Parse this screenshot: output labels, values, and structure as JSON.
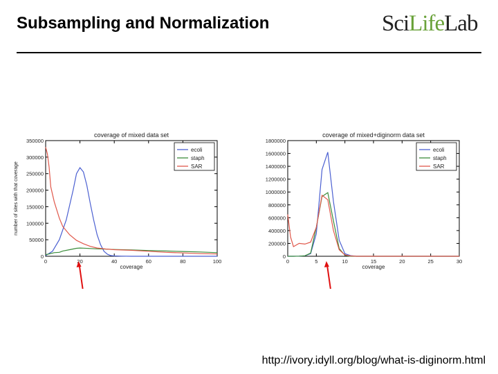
{
  "slide": {
    "title": "Subsampling and Normalization",
    "logo": {
      "part1": "Sci",
      "part2": "Life",
      "part3": "Lab"
    },
    "footer_link": "http://ivory.idyll.org/blog/what-is-diginorm.html"
  },
  "colors": {
    "ecoli": "#4a5fd1",
    "staph": "#3a8c3a",
    "sar": "#e0574a",
    "arrow": "#e01010"
  },
  "chart_data": [
    {
      "type": "line",
      "title": "coverage of mixed data set",
      "xlabel": "coverage",
      "ylabel": "number of sites with that coverage",
      "xlim": [
        0,
        100
      ],
      "ylim": [
        0,
        350000
      ],
      "xticks": [
        0,
        20,
        40,
        60,
        80,
        100
      ],
      "yticks": [
        0,
        50000,
        100000,
        150000,
        200000,
        250000,
        300000,
        350000
      ],
      "legend": "top-right",
      "series": [
        {
          "name": "ecoli",
          "color": "#4a5fd1",
          "x": [
            0,
            4,
            8,
            12,
            16,
            18,
            20,
            22,
            24,
            26,
            28,
            30,
            32,
            34,
            36,
            38,
            40,
            44,
            50,
            60,
            70,
            80,
            90,
            100
          ],
          "y": [
            2000,
            15000,
            50000,
            110000,
            200000,
            250000,
            268000,
            255000,
            215000,
            160000,
            110000,
            65000,
            35000,
            15000,
            6000,
            2000,
            1000,
            500,
            0,
            0,
            0,
            0,
            0,
            0
          ]
        },
        {
          "name": "staph",
          "color": "#3a8c3a",
          "x": [
            0,
            2,
            5,
            8,
            10,
            14,
            18,
            20,
            22,
            26,
            30,
            35,
            40,
            50,
            60,
            70,
            80,
            90,
            100
          ],
          "y": [
            5000,
            7000,
            11000,
            12000,
            16000,
            20000,
            24000,
            25000,
            24500,
            23500,
            22500,
            21500,
            20500,
            19000,
            17500,
            16000,
            14500,
            13000,
            11000
          ]
        },
        {
          "name": "SAR",
          "color": "#e0574a",
          "x": [
            0,
            1,
            2,
            3,
            5,
            8,
            10,
            14,
            18,
            22,
            26,
            30,
            35,
            40,
            50,
            60,
            70,
            80,
            90,
            100
          ],
          "y": [
            330000,
            310000,
            270000,
            210000,
            165000,
            115000,
            90000,
            65000,
            48000,
            38000,
            30000,
            25000,
            22000,
            20000,
            18000,
            15000,
            12000,
            10000,
            8000,
            7000
          ]
        }
      ]
    },
    {
      "type": "line",
      "title": "coverage of mixed+diginorm data set",
      "xlabel": "coverage",
      "ylabel": "",
      "xlim": [
        0,
        30
      ],
      "ylim": [
        0,
        1800000
      ],
      "xticks": [
        0,
        5,
        10,
        15,
        20,
        25,
        30
      ],
      "yticks": [
        0,
        200000,
        400000,
        600000,
        800000,
        1000000,
        1200000,
        1400000,
        1600000,
        1800000
      ],
      "legend": "top-right",
      "series": [
        {
          "name": "ecoli",
          "color": "#4a5fd1",
          "x": [
            0,
            1,
            2,
            3,
            4,
            5,
            6,
            7,
            8,
            9,
            10,
            11,
            12,
            14,
            20,
            30
          ],
          "y": [
            0,
            0,
            2000,
            8000,
            40000,
            350000,
            1350000,
            1620000,
            850000,
            250000,
            40000,
            10000,
            0,
            0,
            0,
            0
          ]
        },
        {
          "name": "staph",
          "color": "#3a8c3a",
          "x": [
            0,
            1,
            2,
            3,
            4,
            5,
            6,
            7,
            8,
            9,
            10,
            11,
            12,
            14,
            20,
            30
          ],
          "y": [
            0,
            0,
            2000,
            8000,
            50000,
            450000,
            930000,
            990000,
            550000,
            120000,
            15000,
            0,
            0,
            0,
            0,
            0
          ]
        },
        {
          "name": "SAR",
          "color": "#e0574a",
          "x": [
            0,
            0.5,
            1,
            2,
            3,
            4,
            5,
            6,
            7,
            8,
            9,
            10,
            11,
            12,
            14,
            20,
            30
          ],
          "y": [
            650000,
            300000,
            150000,
            200000,
            190000,
            220000,
            450000,
            950000,
            880000,
            400000,
            100000,
            20000,
            5000,
            0,
            0,
            0,
            0
          ]
        }
      ]
    }
  ]
}
